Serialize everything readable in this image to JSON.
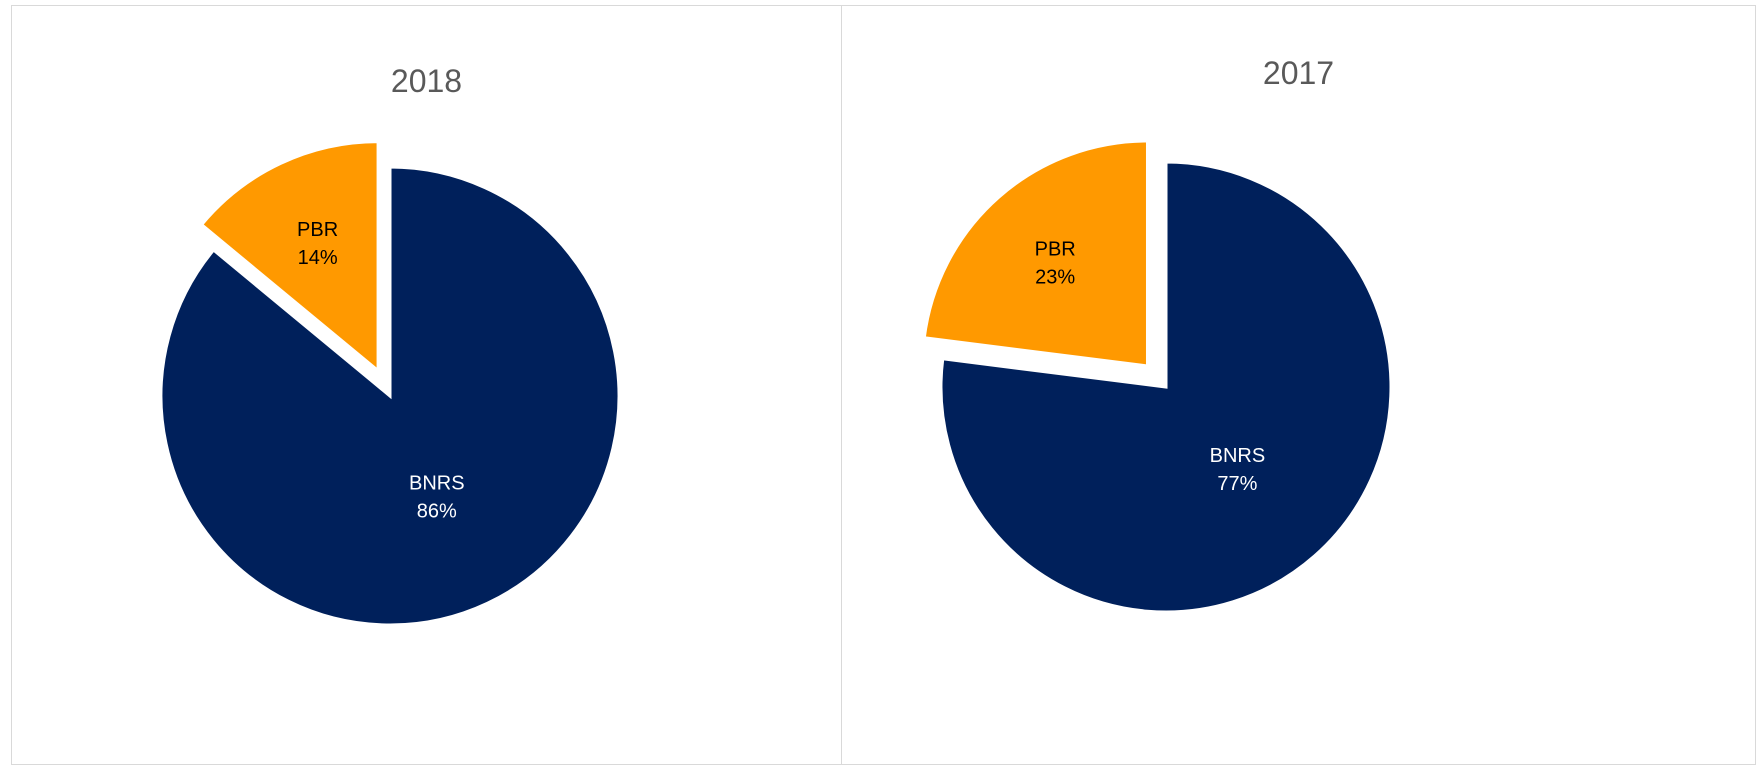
{
  "chart_data": [
    {
      "type": "pie",
      "title": "2018",
      "slices": [
        {
          "label": "PBR",
          "value": 14,
          "value_label": "14%",
          "color": "#FF9900",
          "label_color": "#000000",
          "exploded": true
        },
        {
          "label": "BNRS",
          "value": 86,
          "value_label": "86%",
          "color": "#00205B",
          "label_color": "#FFFFFF",
          "exploded": false
        }
      ],
      "legend": "none"
    },
    {
      "type": "pie",
      "title": "2017",
      "slices": [
        {
          "label": "PBR",
          "value": 23,
          "value_label": "23%",
          "color": "#FF9900",
          "label_color": "#000000",
          "exploded": true
        },
        {
          "label": "BNRS",
          "value": 77,
          "value_label": "77%",
          "color": "#00205B",
          "label_color": "#FFFFFF",
          "exploded": false
        }
      ],
      "legend": "none"
    }
  ]
}
